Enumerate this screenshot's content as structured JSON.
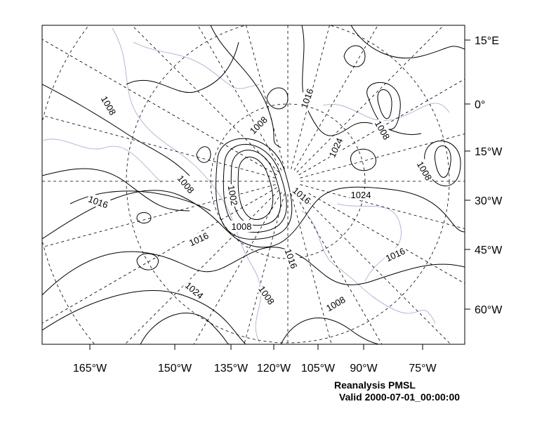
{
  "map": {
    "title": "Reanalysis PMSL",
    "subtitle": "Valid 2000-07-01_00:00:00",
    "right_axis_labels": [
      "15°E",
      "0°",
      "15°W",
      "30°W",
      "45°W",
      "60°W"
    ],
    "bottom_axis_labels": [
      "165°W",
      "150°W",
      "135°W",
      "120°W",
      "105°W",
      "90°W",
      "75°W"
    ],
    "contour_labels": [
      "1008",
      "1008",
      "1016",
      "1008",
      "1024",
      "1008",
      "1008",
      "1002",
      "1016",
      "1024",
      "1016",
      "1008",
      "1016",
      "1016",
      "1016",
      "1024",
      "1008",
      "1008"
    ],
    "colors": {
      "contour": "#000000",
      "coastline": "#b39ddb",
      "graticule": "#000000"
    }
  }
}
